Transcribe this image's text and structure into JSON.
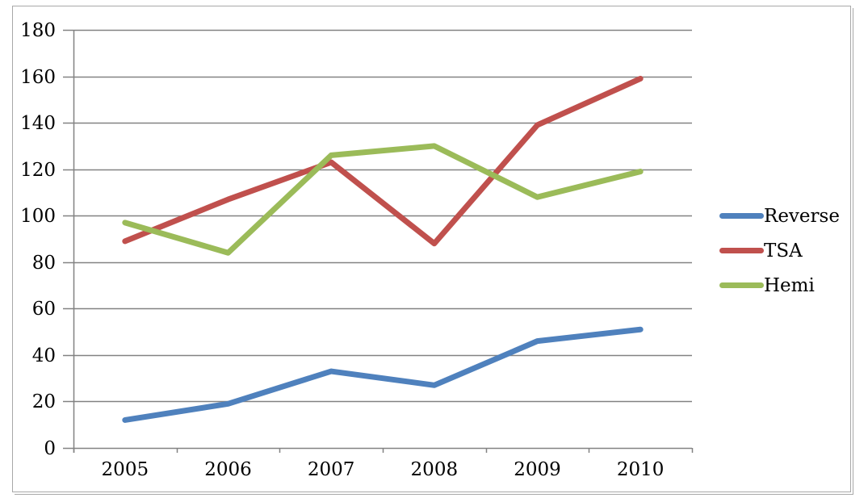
{
  "chart_data": {
    "type": "line",
    "categories": [
      "2005",
      "2006",
      "2007",
      "2008",
      "2009",
      "2010"
    ],
    "series": [
      {
        "name": "Reverse",
        "color": "#4F81BD",
        "values": [
          12,
          19,
          33,
          27,
          46,
          51
        ]
      },
      {
        "name": "TSA",
        "color": "#C0504D",
        "values": [
          89,
          107,
          123,
          88,
          139,
          159
        ]
      },
      {
        "name": "Hemi",
        "color": "#9BBB59",
        "values": [
          97,
          84,
          126,
          130,
          108,
          119
        ]
      }
    ],
    "yticks": [
      0,
      20,
      40,
      60,
      80,
      100,
      120,
      140,
      160,
      180
    ],
    "ylim": [
      0,
      180
    ],
    "grid": "horizontal",
    "legend_position": "right"
  },
  "style": {
    "grid_color": "#828282",
    "axis_color": "#828282",
    "frame_border_color": "#a8a8a8",
    "text_color": "#000000",
    "background": "#ffffff",
    "line_width": 7
  }
}
